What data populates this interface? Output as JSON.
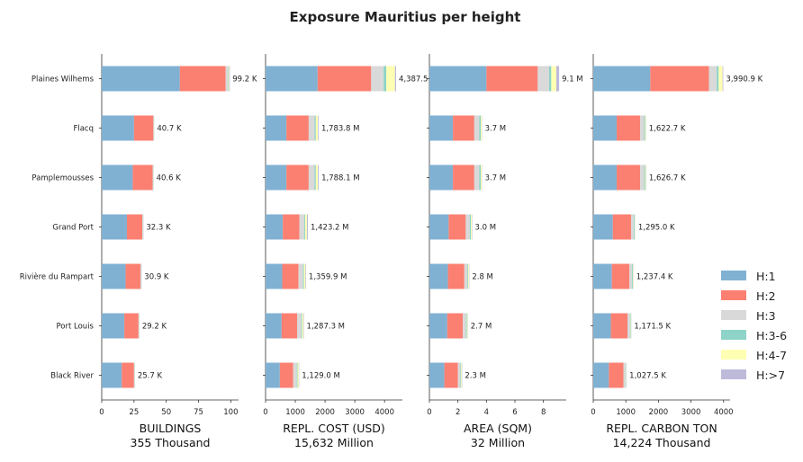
{
  "chart_data": {
    "type": "bar",
    "orientation": "horizontal",
    "stacked": true,
    "title": "Exposure Mauritius per height",
    "categories": [
      "Plaines Wilhems",
      "Flacq",
      "Pamplemousses",
      "Grand Port",
      "Rivière du Rampart",
      "Port Louis",
      "Black River"
    ],
    "legend": {
      "position": "right",
      "entries": [
        {
          "name": "H:1",
          "color": "#80b1d3"
        },
        {
          "name": "H:2",
          "color": "#fb8072"
        },
        {
          "name": "H:3",
          "color": "#d9d9d9"
        },
        {
          "name": "H:3-6",
          "color": "#8dd3c7"
        },
        {
          "name": "H:4-7",
          "color": "#ffffb3"
        },
        {
          "name": "H:>7",
          "color": "#bebada"
        }
      ]
    },
    "panels": [
      {
        "xlabel": "BUILDINGS",
        "total": "355 Thousand",
        "xlim": [
          0,
          106
        ],
        "ticks": [
          0,
          25,
          50,
          75,
          100
        ],
        "tick_labels": [
          "0",
          "25",
          "50",
          "75",
          "100"
        ],
        "series": [
          [
            60.5,
            25.0,
            24.0,
            19.5,
            18.5,
            17.5,
            15.5
          ],
          [
            35.5,
            15.0,
            15.5,
            12.0,
            11.5,
            11.0,
            9.5
          ],
          [
            1.6,
            0.4,
            0.4,
            0.3,
            0.3,
            0.3,
            0.3
          ],
          [
            0.5,
            0.2,
            0.2,
            0.2,
            0.2,
            0.2,
            0.2
          ],
          [
            0.6,
            0.05,
            0.05,
            0.1,
            0.1,
            0.1,
            0.1
          ],
          [
            0.5,
            0.05,
            0.05,
            0.2,
            0.3,
            0.1,
            0.1
          ]
        ],
        "labels": [
          "99.2 K",
          "40.7 K",
          "40.6 K",
          "32.3 K",
          "30.9 K",
          "29.2 K",
          "25.7 K"
        ]
      },
      {
        "xlabel": "REPL. COST (USD)",
        "total": "15,632 Million",
        "xlim": [
          0,
          4600
        ],
        "ticks": [
          0,
          1000,
          2000,
          3000,
          4000
        ],
        "tick_labels": [
          "0",
          "1000",
          "2000",
          "3000",
          "4000"
        ],
        "series": [
          [
            1750,
            700,
            700,
            580,
            560,
            540,
            480
          ],
          [
            1800,
            750,
            750,
            560,
            550,
            520,
            450
          ],
          [
            420,
            200,
            200,
            160,
            150,
            140,
            120
          ],
          [
            90,
            40,
            40,
            30,
            30,
            30,
            25
          ],
          [
            290,
            70,
            70,
            60,
            50,
            40,
            40
          ],
          [
            37.5,
            23.8,
            28.1,
            33.2,
            19.9,
            17.3,
            14.0
          ]
        ],
        "labels": [
          "4,387.5",
          "1,783.8 M",
          "1,788.1 M",
          "1,423.2 M",
          "1,359.9 M",
          "1,287.3 M",
          "1,129.0 M"
        ]
      },
      {
        "xlabel": "AREA (SQM)",
        "total": "32 Million",
        "xlim": [
          0,
          9.6
        ],
        "ticks": [
          0,
          2,
          4,
          6,
          8
        ],
        "tick_labels": [
          "0",
          "2",
          "4",
          "6",
          "8"
        ],
        "series": [
          [
            4.0,
            1.65,
            1.65,
            1.35,
            1.3,
            1.25,
            1.05
          ],
          [
            3.6,
            1.5,
            1.5,
            1.2,
            1.15,
            1.1,
            0.95
          ],
          [
            0.8,
            0.35,
            0.35,
            0.28,
            0.22,
            0.22,
            0.18
          ],
          [
            0.15,
            0.1,
            0.1,
            0.08,
            0.06,
            0.06,
            0.05
          ],
          [
            0.35,
            0.08,
            0.08,
            0.06,
            0.05,
            0.05,
            0.05
          ],
          [
            0.2,
            0.02,
            0.02,
            0.03,
            0.02,
            0.02,
            0.02
          ]
        ],
        "labels": [
          "9.1 M",
          "3.7 M",
          "3.7 M",
          "3.0 M",
          "2.8 M",
          "2.7 M",
          "2.3 M"
        ]
      },
      {
        "xlabel": "REPL. CARBON TON",
        "total": "14,224 Thousand",
        "xlim": [
          0,
          4200
        ],
        "ticks": [
          0,
          1000,
          2000,
          3000,
          4000
        ],
        "tick_labels": [
          "0",
          "1000",
          "2000",
          "3000",
          "4000"
        ],
        "series": [
          [
            1750,
            720,
            720,
            600,
            570,
            540,
            480
          ],
          [
            1800,
            720,
            720,
            560,
            540,
            510,
            450
          ],
          [
            240,
            120,
            120,
            90,
            80,
            80,
            70
          ],
          [
            60,
            30,
            30,
            25,
            25,
            20,
            15
          ],
          [
            120,
            25,
            25,
            15,
            15,
            15,
            10
          ],
          [
            20.9,
            7.7,
            11.7,
            5.0,
            7.4,
            6.5,
            2.5
          ]
        ],
        "labels": [
          "3,990.9 K",
          "1,622.7 K",
          "1,626.7 K",
          "1,295.0 K",
          "1,237.4 K",
          "1,171.5 K",
          "1,027.5 K"
        ]
      }
    ]
  }
}
